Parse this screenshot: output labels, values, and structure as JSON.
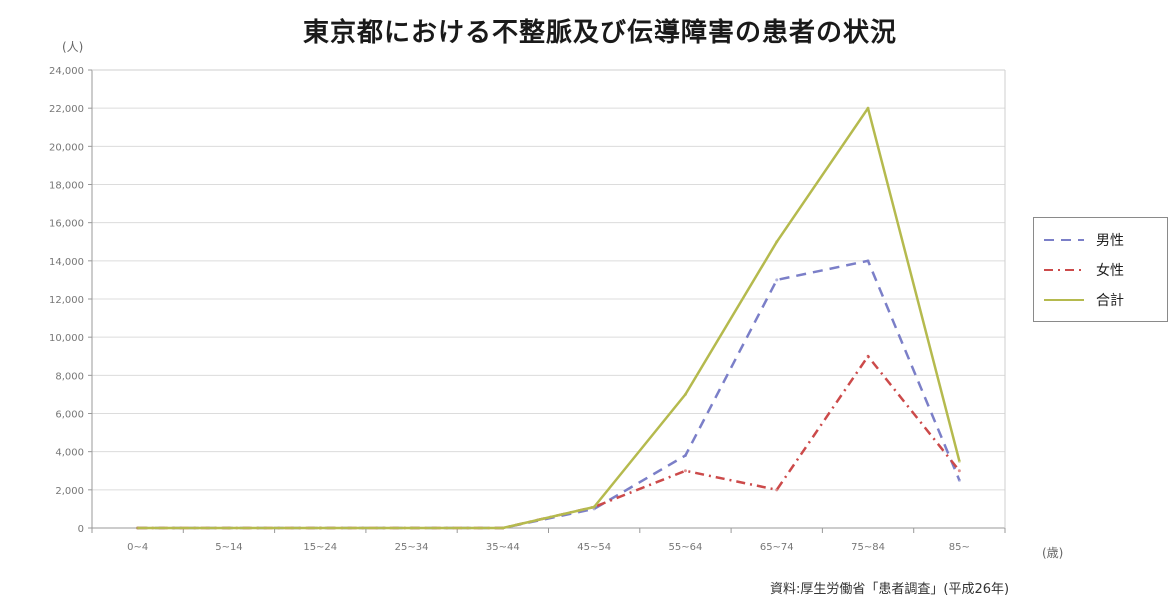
{
  "chart_data": {
    "type": "line",
    "title": "東京都における不整脈及び伝導障害の患者の状況",
    "y_unit": "(人)",
    "x_unit": "(歳)",
    "source": "資料:厚生労働省「患者調査」(平成26年)",
    "categories": [
      "0~4",
      "5~14",
      "15~24",
      "25~34",
      "35~44",
      "45~54",
      "55~64",
      "65~74",
      "75~84",
      "85~"
    ],
    "ylim": [
      0,
      24000
    ],
    "yticks": [
      0,
      2000,
      4000,
      6000,
      8000,
      10000,
      12000,
      14000,
      16000,
      18000,
      20000,
      22000,
      24000
    ],
    "ytick_labels": [
      "0",
      "2,000",
      "4,000",
      "6,000",
      "8,000",
      "10,000",
      "12,000",
      "14,000",
      "16,000",
      "18,000",
      "20,000",
      "22,000",
      "24,000"
    ],
    "grid": true,
    "legend_position": "right",
    "series": [
      {
        "name": "男性",
        "color": "#7b7fc8",
        "dash": "10,7",
        "values": [
          0,
          0,
          0,
          0,
          0,
          1000,
          3800,
          13000,
          14000,
          2500
        ]
      },
      {
        "name": "女性",
        "color": "#cc4a4a",
        "dash": "9,5,2,5",
        "values": [
          0,
          0,
          0,
          0,
          0,
          1100,
          3000,
          2000,
          9000,
          3000
        ]
      },
      {
        "name": "合計",
        "color": "#b5ba4e",
        "dash": "",
        "values": [
          0,
          0,
          0,
          0,
          0,
          1100,
          7000,
          15000,
          22000,
          3500
        ]
      }
    ]
  }
}
